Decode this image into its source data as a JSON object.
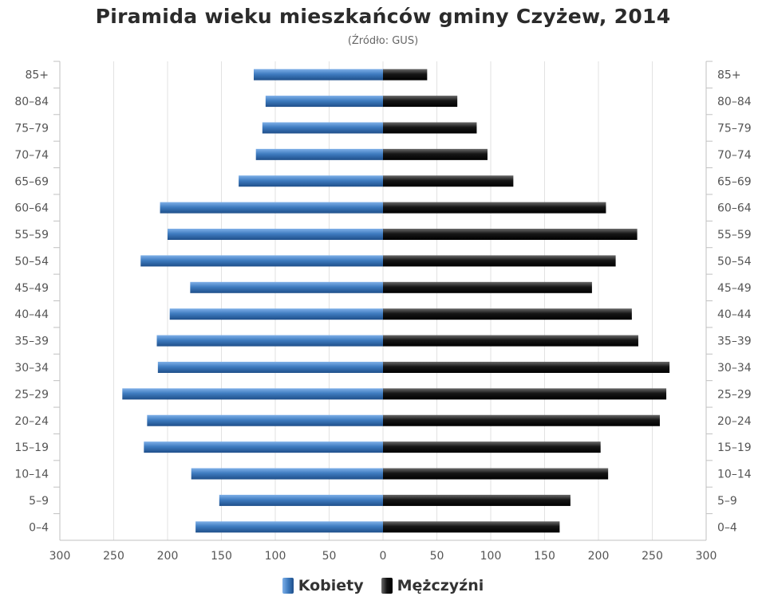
{
  "chart_data": {
    "type": "bar",
    "orientation": "horizontal-pyramid",
    "title": "Piramida wieku mieszkańców gminy Czyżew, 2014",
    "subtitle": "(Źródło: GUS)",
    "categories": [
      "85+",
      "80-84",
      "75-79",
      "70-74",
      "65-69",
      "60-64",
      "55-59",
      "50-54",
      "45-49",
      "40-44",
      "35-39",
      "30-34",
      "25-29",
      "20-24",
      "15-19",
      "10-14",
      "5-9",
      "0-4"
    ],
    "series": [
      {
        "name": "Kobiety",
        "side": "left",
        "color": "#3f7cc0",
        "values": [
          120,
          109,
          112,
          118,
          134,
          207,
          200,
          225,
          179,
          198,
          210,
          209,
          242,
          219,
          222,
          178,
          152,
          174
        ]
      },
      {
        "name": "Mężczyźni",
        "side": "right",
        "color": "#111111",
        "values": [
          41,
          69,
          87,
          97,
          121,
          207,
          236,
          216,
          194,
          231,
          237,
          266,
          263,
          257,
          202,
          209,
          174,
          164
        ]
      }
    ],
    "xlim": [
      -300,
      300
    ],
    "x_ticks": [
      300,
      250,
      200,
      150,
      100,
      50,
      0,
      50,
      100,
      150,
      200,
      250,
      300
    ],
    "grid": true,
    "legend_position": "bottom"
  }
}
